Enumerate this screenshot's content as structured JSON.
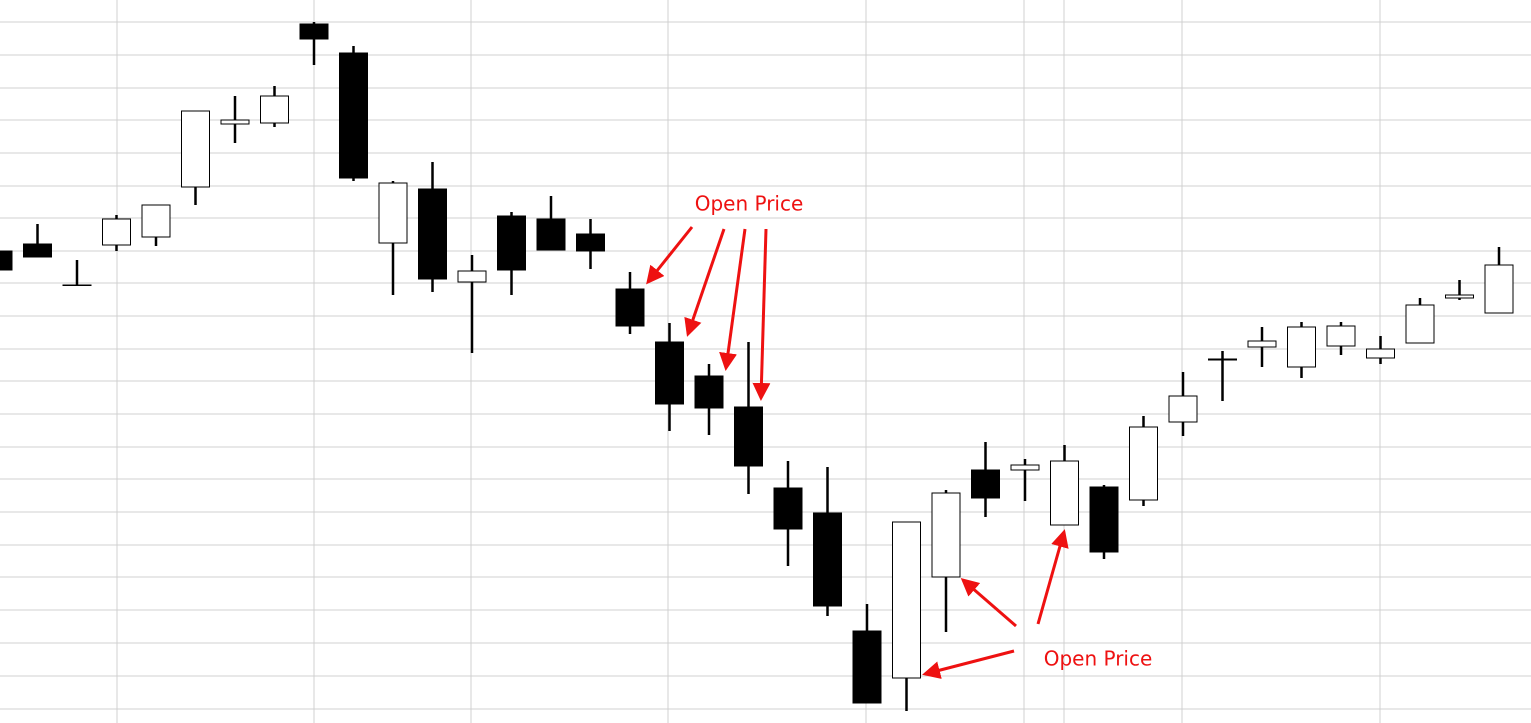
{
  "chart_data": {
    "type": "candlestick",
    "open": [
      47.2,
      47.9,
      43.8,
      47.8,
      48.6,
      53.6,
      59.9,
      60.0,
      69.9,
      67.0,
      48.0,
      53.4,
      44.1,
      50.7,
      50.4,
      48.9,
      43.4,
      38.1,
      34.7,
      31.6,
      23.5,
      21.0,
      9.2,
      4.5,
      14.6,
      25.3,
      25.3,
      19.8,
      23.6,
      22.3,
      30.1,
      36.3,
      37.6,
      35.6,
      37.7,
      36.5,
      38.0,
      42.5,
      41.0
    ],
    "high": [
      47.2,
      49.9,
      46.3,
      50.8,
      51.8,
      61.2,
      62.7,
      63.7,
      70.1,
      67.7,
      54.2,
      56.1,
      46.8,
      51.1,
      52.7,
      50.4,
      45.1,
      40.0,
      35.9,
      38.1,
      26.2,
      25.6,
      11.9,
      20.1,
      23.3,
      28.1,
      26.4,
      27.8,
      23.8,
      30.7,
      35.1,
      37.2,
      39.6,
      40.1,
      40.1,
      38.7,
      42.5,
      44.3,
      47.6
    ],
    "low": [
      45.3,
      46.6,
      43.8,
      47.2,
      47.7,
      51.8,
      58.0,
      59.6,
      65.8,
      54.2,
      42.8,
      43.1,
      37.0,
      42.8,
      47.3,
      45.4,
      38.9,
      29.2,
      28.8,
      22.9,
      15.7,
      10.7,
      2.0,
      1.2,
      9.1,
      20.6,
      22.2,
      19.8,
      16.4,
      21.7,
      28.7,
      32.2,
      35.6,
      34.5,
      36.8,
      35.9,
      38.0,
      42.3,
      41.0
    ],
    "close": [
      45.3,
      46.6,
      43.8,
      50.4,
      51.8,
      61.2,
      60.3,
      62.7,
      68.4,
      54.5,
      54.0,
      44.4,
      45.2,
      45.3,
      47.3,
      47.2,
      39.7,
      31.9,
      31.5,
      25.7,
      19.4,
      11.7,
      2.0,
      20.1,
      23.0,
      22.5,
      25.8,
      26.2,
      17.1,
      29.6,
      32.7,
      36.4,
      38.2,
      39.6,
      39.7,
      37.4,
      41.8,
      42.8,
      45.8
    ],
    "up_color": "#ffffff",
    "down_color": "#000000",
    "ylim": [
      0,
      72.3
    ],
    "yticks": [
      1.4,
      4.7,
      8.0,
      11.3,
      14.6,
      17.8,
      21.1,
      24.4,
      27.6,
      30.9,
      34.2,
      37.4,
      40.7,
      44.0,
      47.2,
      50.5,
      53.7,
      57.0,
      60.3,
      63.5,
      66.8,
      70.1
    ],
    "grid": true,
    "annotations": [
      "Open Price",
      "Open Price"
    ]
  }
}
